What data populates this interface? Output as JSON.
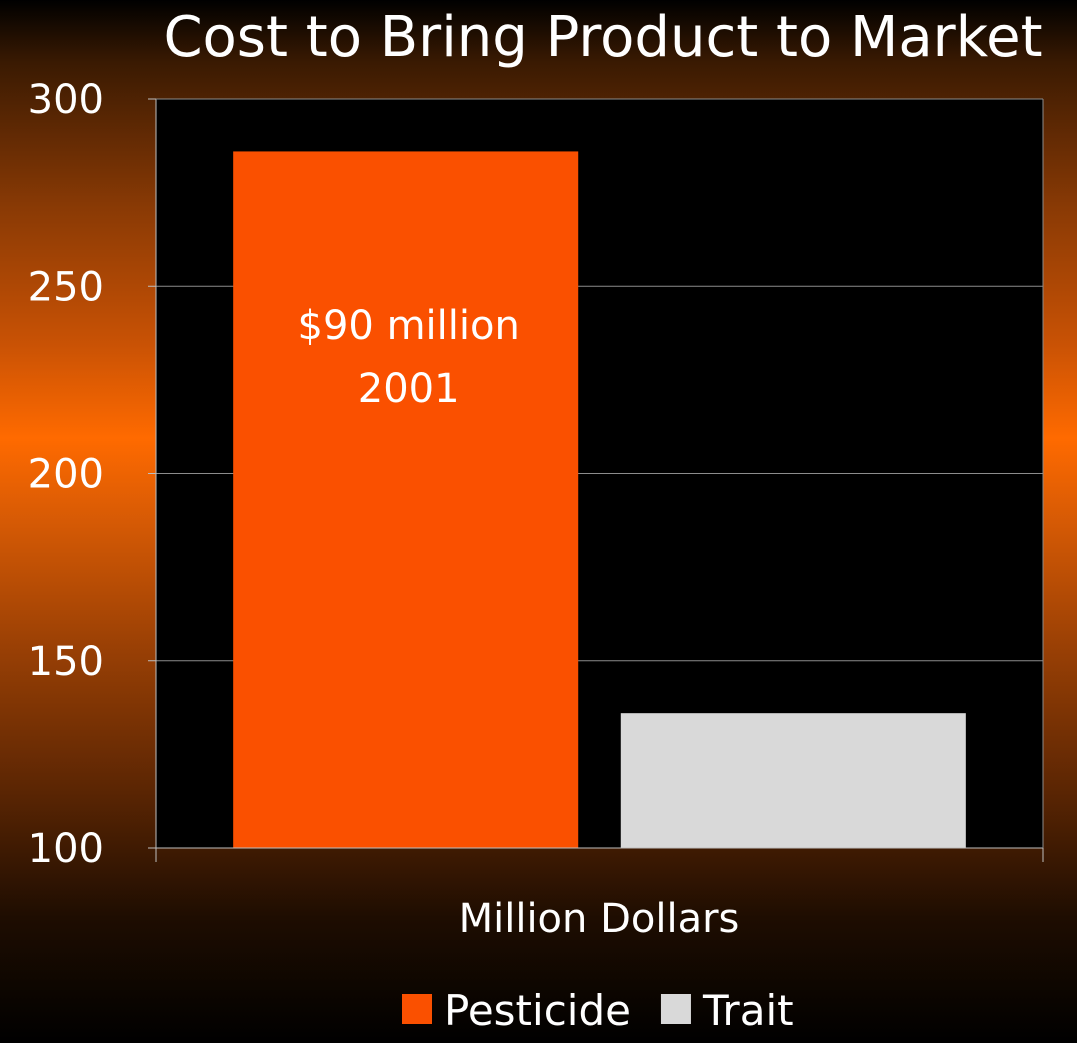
{
  "chart_data": {
    "type": "bar",
    "title": "Cost to Bring Product to Market",
    "xlabel": "Million Dollars",
    "ylabel": "",
    "ylim": [
      100,
      300
    ],
    "yticks": [
      "100",
      "150",
      "200",
      "250",
      "300"
    ],
    "grid": true,
    "legend_position": "bottom",
    "categories": [
      "Million Dollars"
    ],
    "series": [
      {
        "name": "Pesticide",
        "values": [
          286
        ],
        "color": "#fa5000"
      },
      {
        "name": "Trait",
        "values": [
          136
        ],
        "color": "#d9d9d9"
      }
    ],
    "annotations": [
      {
        "series": "Pesticide",
        "lines": [
          "$90 million",
          "2001"
        ]
      }
    ],
    "plot_background": "#000000"
  }
}
